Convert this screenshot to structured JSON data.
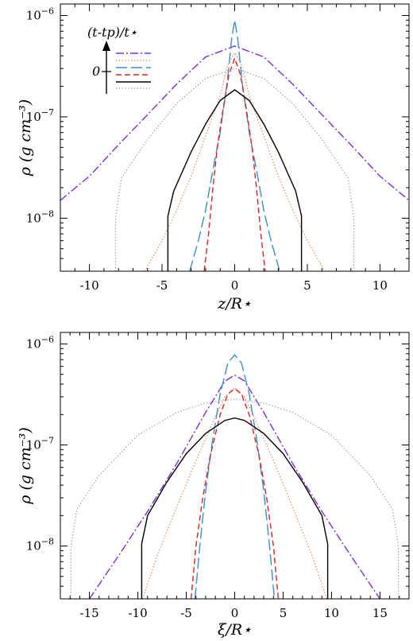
{
  "chart_data": [
    {
      "type": "line",
      "panel": "top",
      "xlabel": "z/R⋆",
      "ylabel": "ρ (g cm⁻³)",
      "xlim": [
        -12,
        12
      ],
      "ylim": [
        3e-09,
        1.3e-06
      ],
      "yscale": "log",
      "x_ticks": [
        -10,
        -5,
        0,
        5,
        10
      ],
      "x_tick_labels": [
        "-10",
        "-5",
        "0",
        "5",
        "10"
      ],
      "y_ticks": [
        1e-08,
        1e-07,
        1e-06
      ],
      "y_tick_labels": [
        [
          "10",
          "−8"
        ],
        [
          "10",
          "−7"
        ],
        [
          "10",
          "−6"
        ]
      ],
      "legend": {
        "title": "(t-tp)/t⋆",
        "marker": "0",
        "position": "top-left"
      },
      "series": [
        {
          "style": "dashdot",
          "color": "#7b2fd6",
          "points": [
            [
              -12,
              1.5e-08
            ],
            [
              -10,
              2.6e-08
            ],
            [
              -8,
              5.3e-08
            ],
            [
              -6,
              1.05e-07
            ],
            [
              -4,
              2.1e-07
            ],
            [
              -2,
              3.9e-07
            ],
            [
              0,
              5e-07
            ],
            [
              2,
              3.9e-07
            ],
            [
              4,
              2.1e-07
            ],
            [
              6,
              1.05e-07
            ],
            [
              8,
              5.3e-08
            ],
            [
              10,
              2.6e-08
            ],
            [
              12,
              1.5e-08
            ]
          ]
        },
        {
          "style": "dotted",
          "color": "#e8702a",
          "points": [
            [
              -6.2,
              3e-09
            ],
            [
              -5,
              6e-09
            ],
            [
              -4,
              1.2e-08
            ],
            [
              -3,
              2.6e-08
            ],
            [
              -2,
              6.5e-08
            ],
            [
              -1,
              1.6e-07
            ],
            [
              -0.5,
              3.2e-07
            ],
            [
              0,
              4.3e-07
            ],
            [
              0.5,
              3.2e-07
            ],
            [
              1,
              1.6e-07
            ],
            [
              2,
              6.5e-08
            ],
            [
              3,
              2.6e-08
            ],
            [
              4,
              1.2e-08
            ],
            [
              5,
              6e-09
            ],
            [
              6.2,
              3e-09
            ]
          ]
        },
        {
          "style": "longdash",
          "color": "#3a8fd0",
          "points": [
            [
              -3.1,
              3e-09
            ],
            [
              -2.5,
              6e-09
            ],
            [
              -2,
              1.2e-08
            ],
            [
              -1.5,
              3e-08
            ],
            [
              -1,
              7e-08
            ],
            [
              -0.5,
              2.3e-07
            ],
            [
              -0.2,
              6e-07
            ],
            [
              0,
              9e-07
            ],
            [
              0.2,
              6e-07
            ],
            [
              0.5,
              2.3e-07
            ],
            [
              1,
              7e-08
            ],
            [
              1.5,
              3e-08
            ],
            [
              2,
              1.2e-08
            ],
            [
              2.5,
              6e-09
            ],
            [
              3.1,
              3e-09
            ]
          ]
        },
        {
          "style": "dashed",
          "color": "#e0201c",
          "points": [
            [
              -2.1,
              3e-09
            ],
            [
              -1.8,
              7e-09
            ],
            [
              -1.5,
              2e-08
            ],
            [
              -1.2,
              5e-08
            ],
            [
              -0.8,
              1.2e-07
            ],
            [
              -0.4,
              2.6e-07
            ],
            [
              0,
              3.8e-07
            ],
            [
              0.4,
              2.6e-07
            ],
            [
              0.8,
              1.2e-07
            ],
            [
              1.2,
              5e-08
            ],
            [
              1.5,
              2e-08
            ],
            [
              1.8,
              7e-09
            ],
            [
              2.1,
              3e-09
            ]
          ]
        },
        {
          "style": "solid",
          "color": "#000000",
          "points": [
            [
              -4.6,
              3e-09
            ],
            [
              -4.6,
              1.05e-08
            ],
            [
              -4.2,
              1.85e-08
            ],
            [
              -3,
              4.5e-08
            ],
            [
              -2,
              8.5e-08
            ],
            [
              -1,
              1.45e-07
            ],
            [
              0,
              1.85e-07
            ],
            [
              1,
              1.45e-07
            ],
            [
              2,
              8.5e-08
            ],
            [
              3,
              4.5e-08
            ],
            [
              4.2,
              1.85e-08
            ],
            [
              4.6,
              1.05e-08
            ],
            [
              4.6,
              3e-09
            ]
          ]
        },
        {
          "style": "dotted",
          "color": "#909090",
          "points": [
            [
              -8.2,
              3e-09
            ],
            [
              -8.2,
              1e-08
            ],
            [
              -7.8,
              2.5e-08
            ],
            [
              -6,
              6e-08
            ],
            [
              -4,
              1.35e-07
            ],
            [
              -2,
              2.4e-07
            ],
            [
              0,
              3e-07
            ],
            [
              2,
              2.4e-07
            ],
            [
              4,
              1.35e-07
            ],
            [
              6,
              6e-08
            ],
            [
              7.8,
              2.5e-08
            ],
            [
              8.2,
              1e-08
            ],
            [
              8.2,
              3e-09
            ]
          ]
        }
      ]
    },
    {
      "type": "line",
      "panel": "bottom",
      "xlabel": "ξ/R⋆",
      "ylabel": "ρ (g cm⁻³)",
      "xlim": [
        -18,
        18
      ],
      "ylim": [
        3e-09,
        1.3e-06
      ],
      "yscale": "log",
      "x_ticks": [
        -15,
        -10,
        -5,
        0,
        5,
        10,
        15
      ],
      "x_tick_labels": [
        "-15",
        "-10",
        "-5",
        "0",
        "5",
        "10",
        "15"
      ],
      "y_ticks": [
        1e-08,
        1e-07,
        1e-06
      ],
      "y_tick_labels": [
        [
          "10",
          "−8"
        ],
        [
          "10",
          "−7"
        ],
        [
          "10",
          "−6"
        ]
      ],
      "series": [
        {
          "style": "dashdot",
          "color": "#7b2fd6",
          "points": [
            [
              -15,
              3e-09
            ],
            [
              -12,
              8e-09
            ],
            [
              -9,
              2.2e-08
            ],
            [
              -6,
              6.5e-08
            ],
            [
              -3,
              2.1e-07
            ],
            [
              -1,
              4.3e-07
            ],
            [
              0,
              4.9e-07
            ],
            [
              1,
              4.3e-07
            ],
            [
              3,
              2.1e-07
            ],
            [
              6,
              6.5e-08
            ],
            [
              9,
              2.2e-08
            ],
            [
              12,
              8e-09
            ],
            [
              15,
              3e-09
            ]
          ]
        },
        {
          "style": "dotted",
          "color": "#e8702a",
          "points": [
            [
              -9.5,
              3e-09
            ],
            [
              -8,
              8e-09
            ],
            [
              -6,
              2.4e-08
            ],
            [
              -4,
              7e-08
            ],
            [
              -2,
              1.9e-07
            ],
            [
              -1,
              3e-07
            ],
            [
              0,
              3.7e-07
            ],
            [
              1,
              3e-07
            ],
            [
              2,
              1.9e-07
            ],
            [
              4,
              7e-08
            ],
            [
              6,
              2.4e-08
            ],
            [
              8,
              8e-09
            ],
            [
              9.5,
              3e-09
            ]
          ]
        },
        {
          "style": "longdash",
          "color": "#3a8fd0",
          "points": [
            [
              -4.1,
              3e-09
            ],
            [
              -3.6,
              1e-08
            ],
            [
              -3,
              3.5e-08
            ],
            [
              -2.3,
              1.1e-07
            ],
            [
              -1.5,
              3.2e-07
            ],
            [
              -0.7,
              6.5e-07
            ],
            [
              0,
              7.8e-07
            ],
            [
              0.7,
              6.5e-07
            ],
            [
              1.5,
              3.2e-07
            ],
            [
              2.3,
              1.1e-07
            ],
            [
              3,
              3.5e-08
            ],
            [
              3.6,
              1e-08
            ],
            [
              4.1,
              3e-09
            ]
          ]
        },
        {
          "style": "dashed",
          "color": "#e0201c",
          "points": [
            [
              -4.5,
              3e-09
            ],
            [
              -4,
              1e-08
            ],
            [
              -3.3,
              3e-08
            ],
            [
              -2.5,
              8e-08
            ],
            [
              -1.5,
              2e-07
            ],
            [
              -0.7,
              3.2e-07
            ],
            [
              0,
              3.6e-07
            ],
            [
              0.7,
              3.2e-07
            ],
            [
              1.5,
              2e-07
            ],
            [
              2.5,
              8e-08
            ],
            [
              3.3,
              3e-08
            ],
            [
              4,
              1e-08
            ],
            [
              4.5,
              3e-09
            ]
          ]
        },
        {
          "style": "solid",
          "color": "#000000",
          "points": [
            [
              -9.6,
              3e-09
            ],
            [
              -9.6,
              1.05e-08
            ],
            [
              -9,
              2e-08
            ],
            [
              -7,
              4.3e-08
            ],
            [
              -5,
              8.2e-08
            ],
            [
              -3,
              1.3e-07
            ],
            [
              -1,
              1.75e-07
            ],
            [
              0,
              1.85e-07
            ],
            [
              1,
              1.75e-07
            ],
            [
              3,
              1.3e-07
            ],
            [
              5,
              8.2e-08
            ],
            [
              7,
              4.3e-08
            ],
            [
              9,
              2e-08
            ],
            [
              9.6,
              1.05e-08
            ],
            [
              9.6,
              3e-09
            ]
          ]
        },
        {
          "style": "dotted",
          "color": "#909090",
          "points": [
            [
              -16.9,
              3e-09
            ],
            [
              -16.9,
              1e-08
            ],
            [
              -16.3,
              2.3e-08
            ],
            [
              -14,
              5e-08
            ],
            [
              -10,
              1.25e-07
            ],
            [
              -6,
              2.1e-07
            ],
            [
              -3,
              2.6e-07
            ],
            [
              0,
              2.85e-07
            ],
            [
              3,
              2.6e-07
            ],
            [
              6,
              2.1e-07
            ],
            [
              10,
              1.25e-07
            ],
            [
              14,
              5e-08
            ],
            [
              16.3,
              2.3e-08
            ],
            [
              16.9,
              1e-08
            ],
            [
              16.9,
              3e-09
            ]
          ]
        }
      ]
    }
  ]
}
